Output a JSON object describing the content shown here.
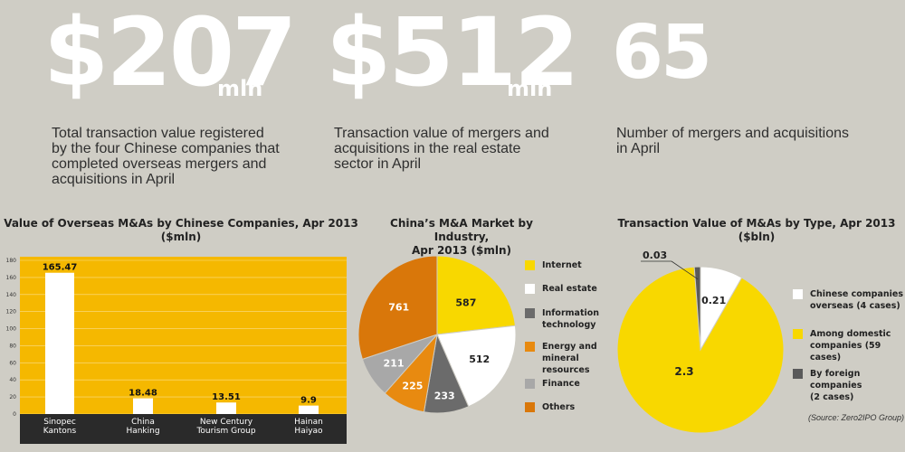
{
  "stats": [
    {
      "number": "$207",
      "unit": "mln",
      "desc": [
        "Total transaction value registered",
        "by the four Chinese companies that",
        "completed overseas mergers and",
        "acquisitions in April"
      ]
    },
    {
      "number": "$512",
      "unit": "mln",
      "desc": [
        "Transaction value of mergers and",
        "acquisitions in the real estate",
        "sector in April"
      ]
    },
    {
      "number": "65",
      "unit": "",
      "desc": [
        "Number of mergers and acquisitions",
        "in April"
      ]
    }
  ],
  "colors": {
    "background": "#cfcdc5",
    "bar_panel": "#f5b800",
    "yellow": "#f8d800",
    "white": "#ffffff",
    "gray_dark": "#6b6b6b",
    "orange": "#e88a10",
    "gray_light": "#a8a8a8",
    "orange_dark": "#d9770a"
  },
  "chart_data": [
    {
      "type": "bar",
      "title": "Value of Overseas M&As by Chinese Companies, Apr 2013 ($mln)",
      "categories": [
        [
          "Sinopec",
          "Kantons"
        ],
        [
          "China",
          "Hanking"
        ],
        [
          "New Century",
          "Tourism Group"
        ],
        [
          "Hainan",
          "Haiyao"
        ]
      ],
      "values": [
        165.47,
        18.48,
        13.51,
        9.9
      ],
      "value_labels": [
        "165.47",
        "18.48",
        "13.51",
        "9.9"
      ],
      "yticks": [
        0,
        20,
        40,
        60,
        80,
        100,
        120,
        140,
        160,
        180
      ],
      "ylim": [
        0,
        180
      ],
      "grid": true
    },
    {
      "type": "pie",
      "title": [
        "China’s M&A Market by Industry,",
        "Apr 2013 ($mln)"
      ],
      "slices": [
        {
          "label": [
            "Internet"
          ],
          "value": 587,
          "color": "#f8d800"
        },
        {
          "label": [
            "Real estate"
          ],
          "value": 512,
          "color": "#ffffff"
        },
        {
          "label": [
            "Information",
            "technology"
          ],
          "value": 233,
          "color": "#6b6b6b"
        },
        {
          "label": [
            "Energy and",
            "mineral resources"
          ],
          "value": 225,
          "color": "#e88a10"
        },
        {
          "label": [
            "Finance"
          ],
          "value": 211,
          "color": "#a8a8a8"
        },
        {
          "label": [
            "Others"
          ],
          "value": 761,
          "color": "#d9770a"
        }
      ]
    },
    {
      "type": "pie",
      "title": "Transaction Value of M&As by Type, Apr 2013 ($bln)",
      "slices": [
        {
          "label": [
            "Chinese companies",
            "overseas (4 cases)"
          ],
          "value": 0.21,
          "value_label": "0.21",
          "color": "#ffffff"
        },
        {
          "label": [
            "Among domestic",
            "companies (59 cases)"
          ],
          "value": 2.3,
          "value_label": "2.3",
          "color": "#f8d800"
        },
        {
          "label": [
            "By foreign companies",
            "(2 cases)"
          ],
          "value": 0.03,
          "value_label": "0.03",
          "color": "#5a5a5a"
        }
      ],
      "source": "(Source: Zero2IPO Group)"
    }
  ]
}
